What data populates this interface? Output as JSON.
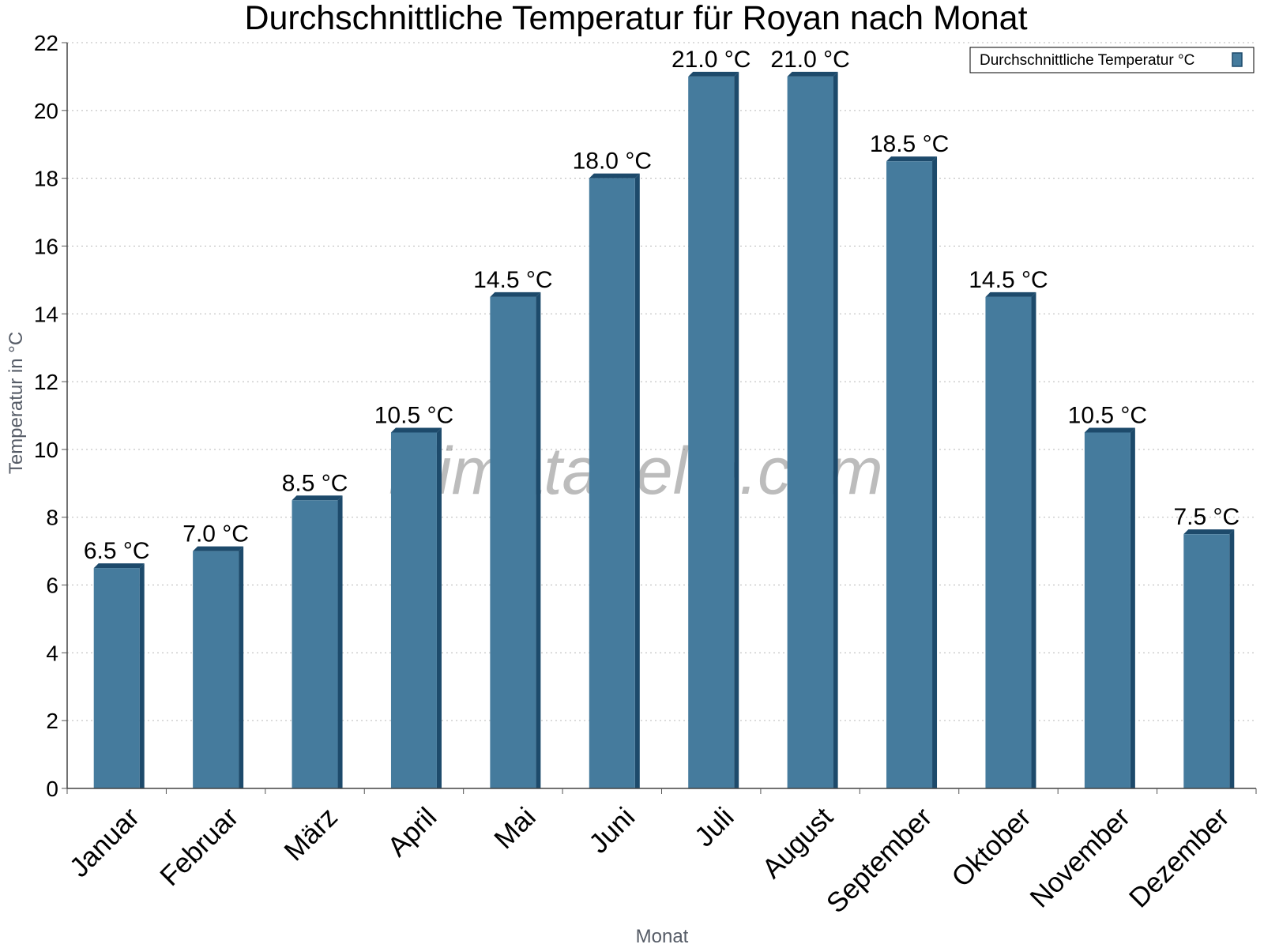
{
  "chart_data": {
    "type": "bar",
    "title": "Durchschnittliche Temperatur für Royan nach Monat",
    "xlabel": "Monat",
    "ylabel": "Temperatur in °C",
    "ylim": [
      0,
      22
    ],
    "yticks": [
      0,
      2,
      4,
      6,
      8,
      10,
      12,
      14,
      16,
      18,
      20,
      22
    ],
    "grid": true,
    "legend_position": "top-right",
    "categories": [
      "Januar",
      "Februar",
      "März",
      "April",
      "Mai",
      "Juni",
      "Juli",
      "August",
      "September",
      "Oktober",
      "November",
      "Dezember"
    ],
    "series": [
      {
        "name": "Durchschnittliche Temperatur °C",
        "values": [
          6.5,
          7.0,
          8.5,
          10.5,
          14.5,
          18.0,
          21.0,
          21.0,
          18.5,
          14.5,
          10.5,
          7.5
        ],
        "labels": [
          "6.5 °C",
          "7.0 °C",
          "8.5 °C",
          "10.5 °C",
          "14.5 °C",
          "18.0 °C",
          "21.0 °C",
          "21.0 °C",
          "18.5 °C",
          "14.5 °C",
          "10.5 °C",
          "7.5 °C"
        ],
        "color": "#457b9d",
        "edge_color": "#1d4a6b"
      }
    ]
  },
  "watermark": "klimatabelle.com"
}
